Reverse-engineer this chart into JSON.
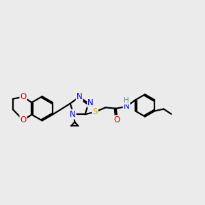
{
  "bg_color": "#ebebeb",
  "atom_colors": {
    "C": "#000000",
    "N": "#0000ee",
    "O": "#ee0000",
    "S": "#ccaa00",
    "H": "#4a9090"
  },
  "bond_color": "#000000",
  "bond_width": 1.6,
  "font_size_atom": 8.5
}
